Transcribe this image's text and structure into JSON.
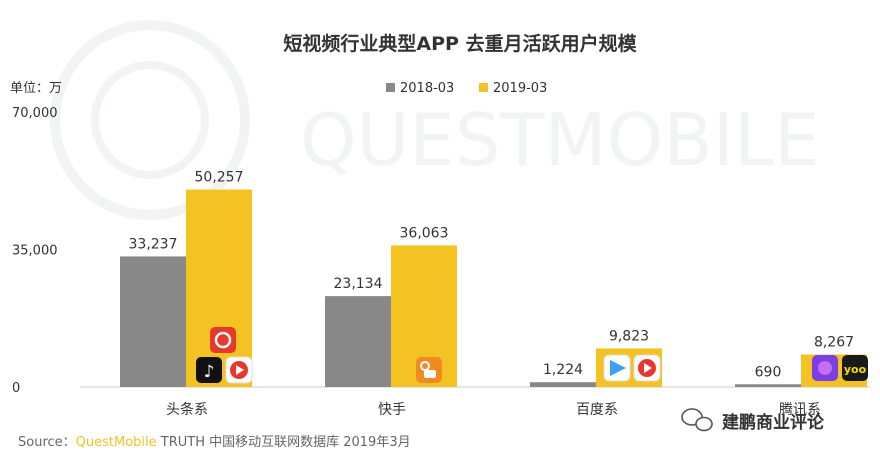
{
  "chart_data": {
    "type": "bar",
    "title": "短视频行业典型APP 去重月活跃用户规模",
    "unit_label": "单位：万",
    "categories": [
      "头条系",
      "快手",
      "百度系",
      "腾讯系"
    ],
    "series": [
      {
        "name": "2018-03",
        "values": [
          33237,
          23134,
          1224,
          690
        ]
      },
      {
        "name": "2019-03",
        "values": [
          50257,
          36063,
          9823,
          8267
        ]
      }
    ],
    "value_labels": [
      [
        "33,237",
        "23,134",
        "1,224",
        "690"
      ],
      [
        "50,257",
        "36,063",
        "9,823",
        "8,267"
      ]
    ],
    "yticks": [
      "0",
      "35,000",
      "70,000"
    ],
    "ytick_values": [
      0,
      35000,
      70000
    ],
    "ylim": [
      0,
      70000
    ],
    "legend_position": "top-center",
    "grid": false,
    "colors": {
      "2018-03": "#888888",
      "2019-03": "#f3c323"
    }
  },
  "source_label": "Source：",
  "source_brand": "QuestMobile",
  "source_rest": " TRUTH 中国移动互联网数据库 2019年3月",
  "watermark_text": "QUESTMOBILE",
  "wechat_label": "建鹏商业评论",
  "app_icons": [
    {
      "category": "头条系",
      "icons": [
        "douyin-icon",
        "huoshan-icon",
        "xigua-icon"
      ]
    },
    {
      "category": "快手",
      "icons": [
        "kuaishou-icon"
      ]
    },
    {
      "category": "百度系",
      "icons": [
        "haokan-icon",
        "quanmin-icon"
      ]
    },
    {
      "category": "腾讯系",
      "icons": [
        "weishi-icon",
        "yoo-icon"
      ]
    }
  ]
}
